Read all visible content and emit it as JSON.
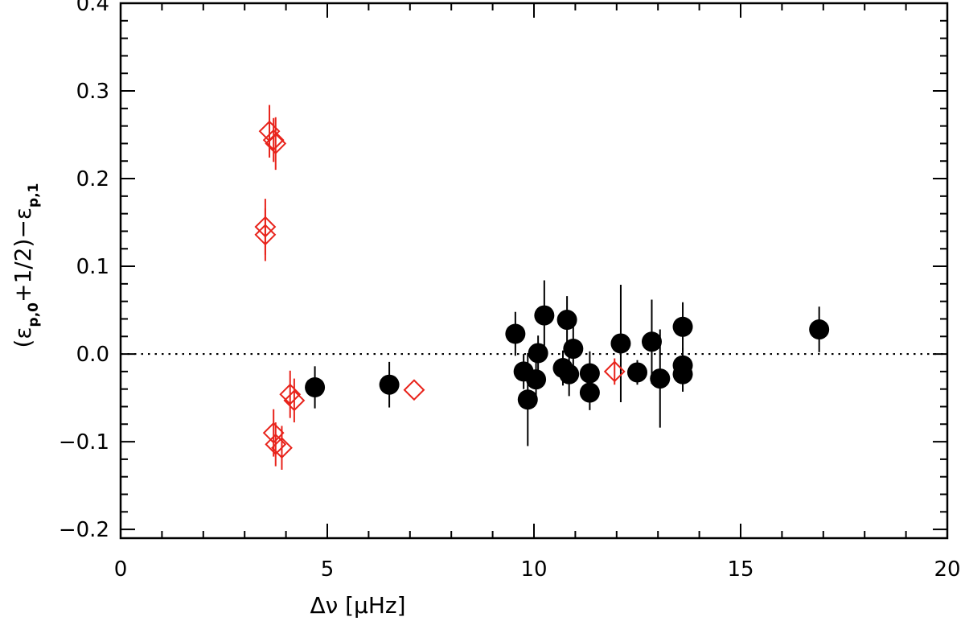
{
  "chart_data": {
    "type": "scatter",
    "xlabel": "Δν [μHz]",
    "ylabel": {
      "open": "(ε",
      "sub1": "p,0",
      "middle": "+1/2)−ε",
      "sub2": "p,1"
    },
    "xlim": [
      0,
      20
    ],
    "ylim": [
      -0.21,
      0.4
    ],
    "xticks": [
      0,
      5,
      10,
      15,
      20
    ],
    "xtick_labels": [
      "0",
      "5",
      "10",
      "15",
      "20"
    ],
    "yticks": [
      -0.2,
      -0.1,
      0.0,
      0.1,
      0.2,
      0.3,
      0.4
    ],
    "ytick_labels": [
      "−0.2",
      "−0.1",
      "0.0",
      "0.1",
      "0.2",
      "0.3",
      "0.4"
    ],
    "reference_line": {
      "y": 0.0,
      "style": "dotted"
    },
    "grid": false,
    "series": [
      {
        "marker": "filled-circle",
        "color": "#000000",
        "points": [
          {
            "x": 4.7,
            "y": -0.038,
            "err": 0.024
          },
          {
            "x": 6.5,
            "y": -0.035,
            "err": 0.026
          },
          {
            "x": 9.55,
            "y": 0.023,
            "err": 0.025
          },
          {
            "x": 9.75,
            "y": -0.02,
            "err": 0.02
          },
          {
            "x": 9.85,
            "y": -0.052,
            "err": 0.053
          },
          {
            "x": 10.05,
            "y": -0.029,
            "err": 0.02
          },
          {
            "x": 10.1,
            "y": 0.001,
            "err": 0.02
          },
          {
            "x": 10.25,
            "y": 0.044,
            "err": 0.04
          },
          {
            "x": 10.7,
            "y": -0.016,
            "err": 0.02
          },
          {
            "x": 10.8,
            "y": 0.039,
            "err": 0.027
          },
          {
            "x": 10.85,
            "y": -0.023,
            "err": 0.025
          },
          {
            "x": 10.95,
            "y": 0.006,
            "err": 0.03
          },
          {
            "x": 11.35,
            "y": -0.022,
            "err": 0.025
          },
          {
            "x": 11.35,
            "y": -0.044,
            "err": 0.02
          },
          {
            "x": 12.1,
            "y": 0.012,
            "err": 0.067
          },
          {
            "x": 12.5,
            "y": -0.021,
            "err": 0.014
          },
          {
            "x": 12.85,
            "y": 0.014,
            "err": 0.048
          },
          {
            "x": 13.05,
            "y": -0.028,
            "err": 0.056
          },
          {
            "x": 13.6,
            "y": 0.031,
            "err": 0.028
          },
          {
            "x": 13.6,
            "y": -0.013,
            "err": 0.02
          },
          {
            "x": 13.6,
            "y": -0.023,
            "err": 0.02
          },
          {
            "x": 16.9,
            "y": 0.028,
            "err": 0.026
          }
        ]
      },
      {
        "marker": "open-diamond",
        "color": "#e8231b",
        "points": [
          {
            "x": 3.6,
            "y": 0.254,
            "err": 0.03
          },
          {
            "x": 3.7,
            "y": 0.244,
            "err": 0.025
          },
          {
            "x": 3.75,
            "y": 0.24,
            "err": 0.03
          },
          {
            "x": 3.5,
            "y": 0.145,
            "err": 0.032
          },
          {
            "x": 3.5,
            "y": 0.136,
            "err": 0.03
          },
          {
            "x": 4.1,
            "y": -0.046,
            "err": 0.027
          },
          {
            "x": 4.2,
            "y": -0.053,
            "err": 0.025
          },
          {
            "x": 3.7,
            "y": -0.09,
            "err": 0.027
          },
          {
            "x": 3.75,
            "y": -0.103,
            "err": 0.025
          },
          {
            "x": 3.9,
            "y": -0.107,
            "err": 0.025
          },
          {
            "x": 7.1,
            "y": -0.041,
            "err": 0.0
          },
          {
            "x": 11.95,
            "y": -0.02,
            "err": 0.015
          }
        ]
      }
    ]
  }
}
